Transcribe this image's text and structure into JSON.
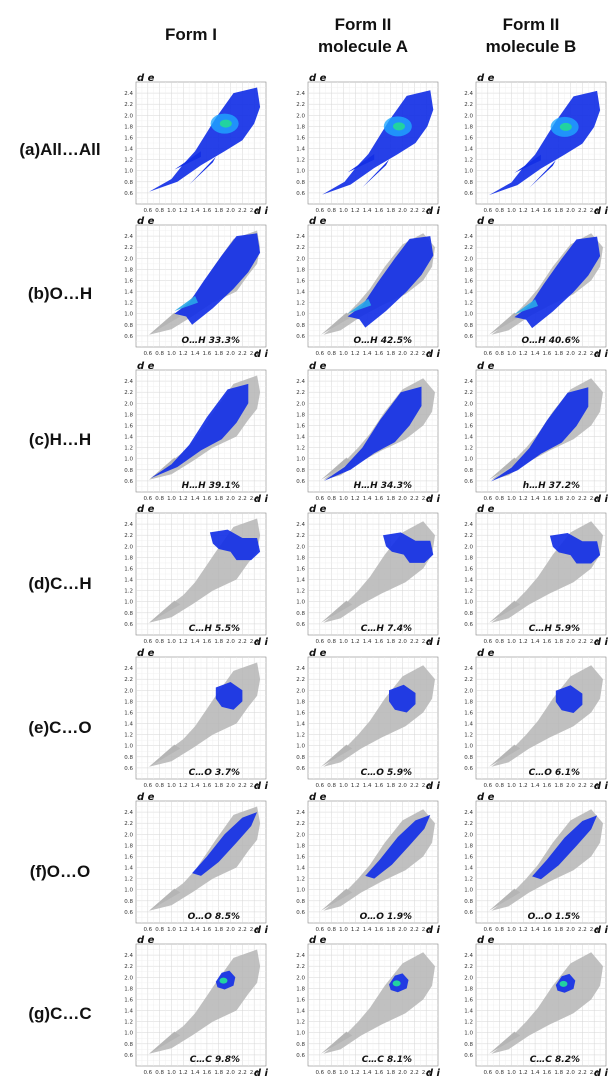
{
  "columns": [
    {
      "line1": "Form I",
      "line2": ""
    },
    {
      "line1": "Form II",
      "line2": "molecule A"
    },
    {
      "line1": "Form II",
      "line2": "molecule B"
    }
  ],
  "rows": [
    {
      "label": "(a)All…All",
      "contact": "All",
      "percents": [
        "",
        "",
        ""
      ]
    },
    {
      "label": "(b)O…H",
      "contact": "O-H",
      "percents": [
        "O…H  33.3%",
        "O…H  42.5%",
        "O…H  40.6%"
      ]
    },
    {
      "label": "(c)H…H",
      "contact": "H-H",
      "percents": [
        "H…H  39.1%",
        "H…H  34.3%",
        "h…H  37.2%"
      ]
    },
    {
      "label": "(d)C…H",
      "contact": "C-H",
      "percents": [
        "C…H  5.5%",
        "C…H  7.4%",
        "C…H  5.9%"
      ]
    },
    {
      "label": "(e)C…O",
      "contact": "C-O",
      "percents": [
        "C…O  3.7%",
        "C…O  5.9%",
        "C…O  6.1%"
      ]
    },
    {
      "label": "(f)O…O",
      "contact": "O-O",
      "percents": [
        "O…O  8.5%",
        "O…O  1.9%",
        "O…O  1.5%"
      ]
    },
    {
      "label": "(g)C…C",
      "contact": "C-C",
      "percents": [
        "C…C  9.8%",
        "C…C  8.1%",
        "C…C  8.2%"
      ]
    }
  ],
  "axes": {
    "y_label": "d e",
    "x_label": "d i",
    "x_ticks": [
      "0.6",
      "0.8",
      "1.0",
      "1.2",
      "1.4",
      "1.6",
      "1.8",
      "2.0",
      "2.2",
      "2.4"
    ],
    "y_ticks": [
      "0.6",
      "0.8",
      "1.0",
      "1.2",
      "1.4",
      "1.6",
      "1.8",
      "2.0",
      "2.2",
      "2.4"
    ]
  },
  "colors": {
    "background_cloud": "#b5b5b5",
    "highlight": "#1430e6",
    "hot": "#22d3a0",
    "grid": "#d6d6d6"
  }
}
